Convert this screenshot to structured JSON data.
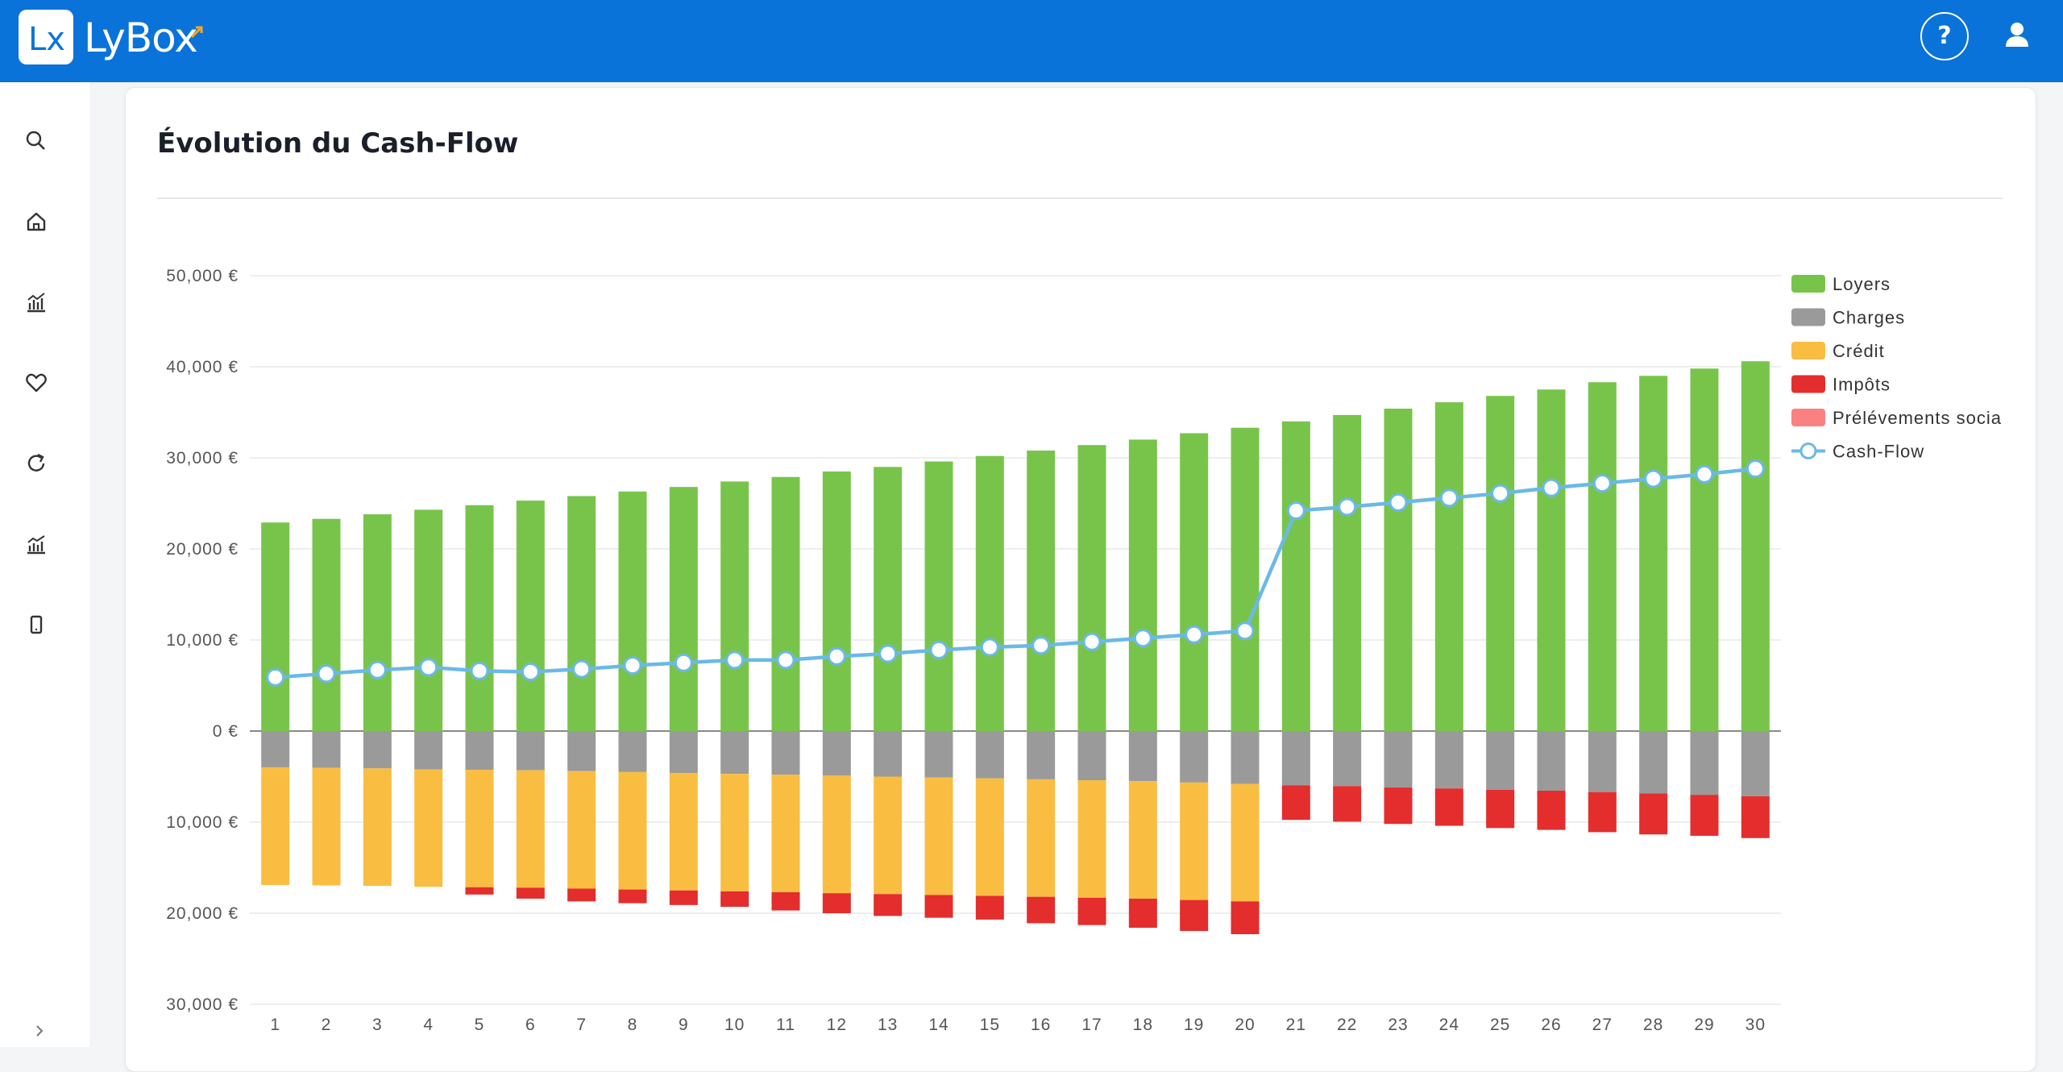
{
  "app": {
    "name": "LyBox",
    "logo_mark": "Lx",
    "help_label": "?"
  },
  "icons": {
    "sidebar": [
      "search-icon",
      "home-icon",
      "chart-icon",
      "heart-icon",
      "refresh-icon",
      "trending-chart-icon",
      "mobile-icon"
    ],
    "collapse": "chevron-right-icon",
    "user": "user-icon"
  },
  "colors": {
    "topbar": "#0a73d9",
    "loyers": "#78c44b",
    "charges": "#9a9a9a",
    "credit": "#f9bd42",
    "impots": "#e42d2d",
    "prelevements": "#f98181",
    "cashflow": "#6ab9e7"
  },
  "card": {
    "title": "Évolution du Cash-Flow"
  },
  "chart_data": {
    "type": "bar",
    "stacked": true,
    "x": [
      1,
      2,
      3,
      4,
      5,
      6,
      7,
      8,
      9,
      10,
      11,
      12,
      13,
      14,
      15,
      16,
      17,
      18,
      19,
      20,
      21,
      22,
      23,
      24,
      25,
      26,
      27,
      28,
      29,
      30
    ],
    "ylim": [
      -30000,
      50000
    ],
    "yticks": [
      {
        "value": 50000,
        "label": "50,000 €"
      },
      {
        "value": 40000,
        "label": "40,000 €"
      },
      {
        "value": 30000,
        "label": "30,000 €"
      },
      {
        "value": 20000,
        "label": "20,000 €"
      },
      {
        "value": 10000,
        "label": "10,000 €"
      },
      {
        "value": 0,
        "label": "0 €"
      },
      {
        "value": -10000,
        "label": "10,000 €"
      },
      {
        "value": -20000,
        "label": "20,000 €"
      },
      {
        "value": -30000,
        "label": "30,000 €"
      }
    ],
    "grid": true,
    "legend_position": "right",
    "series": [
      {
        "name": "Loyers",
        "kind": "bar",
        "color": "#78c44b",
        "values": [
          22900,
          23300,
          23800,
          24300,
          24800,
          25300,
          25800,
          26300,
          26800,
          27400,
          27900,
          28500,
          29000,
          29600,
          30200,
          30800,
          31400,
          32000,
          32700,
          33300,
          34000,
          34700,
          35400,
          36100,
          36800,
          37500,
          38300,
          39000,
          39800,
          40600
        ]
      },
      {
        "name": "Charges",
        "kind": "bar",
        "color": "#9a9a9a",
        "values": [
          -4000,
          -4050,
          -4100,
          -4200,
          -4250,
          -4300,
          -4400,
          -4500,
          -4600,
          -4700,
          -4800,
          -4900,
          -5000,
          -5100,
          -5200,
          -5300,
          -5400,
          -5500,
          -5650,
          -5800,
          -5950,
          -6050,
          -6200,
          -6300,
          -6450,
          -6550,
          -6700,
          -6850,
          -7000,
          -7150
        ]
      },
      {
        "name": "Crédit",
        "kind": "bar",
        "color": "#f9bd42",
        "values": [
          -12900,
          -12900,
          -12900,
          -12900,
          -12900,
          -12900,
          -12900,
          -12900,
          -12900,
          -12900,
          -12900,
          -12900,
          -12900,
          -12900,
          -12900,
          -12900,
          -12900,
          -12900,
          -12900,
          -12900,
          0,
          0,
          0,
          0,
          0,
          0,
          0,
          0,
          0,
          0
        ]
      },
      {
        "name": "Impôts",
        "kind": "bar",
        "color": "#e42d2d",
        "values": [
          0,
          0,
          0,
          0,
          -800,
          -1200,
          -1400,
          -1500,
          -1600,
          -1700,
          -2000,
          -2200,
          -2400,
          -2500,
          -2600,
          -2900,
          -3000,
          -3200,
          -3400,
          -3600,
          -3800,
          -3900,
          -4000,
          -4100,
          -4200,
          -4300,
          -4400,
          -4500,
          -4500,
          -4600
        ]
      },
      {
        "name": "Prélévements socia",
        "kind": "bar",
        "color": "#f98181",
        "values": [
          0,
          0,
          0,
          0,
          0,
          0,
          0,
          0,
          0,
          0,
          0,
          0,
          0,
          0,
          0,
          0,
          0,
          0,
          0,
          0,
          0,
          0,
          0,
          0,
          0,
          0,
          0,
          0,
          0,
          0
        ]
      },
      {
        "name": "Cash-Flow",
        "kind": "line",
        "color": "#6ab9e7",
        "values": [
          5900,
          6300,
          6700,
          7000,
          6600,
          6500,
          6800,
          7200,
          7500,
          7800,
          7800,
          8200,
          8500,
          8900,
          9200,
          9400,
          9800,
          10200,
          10600,
          11000,
          24200,
          24600,
          25100,
          25600,
          26100,
          26700,
          27200,
          27700,
          28200,
          28800
        ]
      }
    ]
  }
}
